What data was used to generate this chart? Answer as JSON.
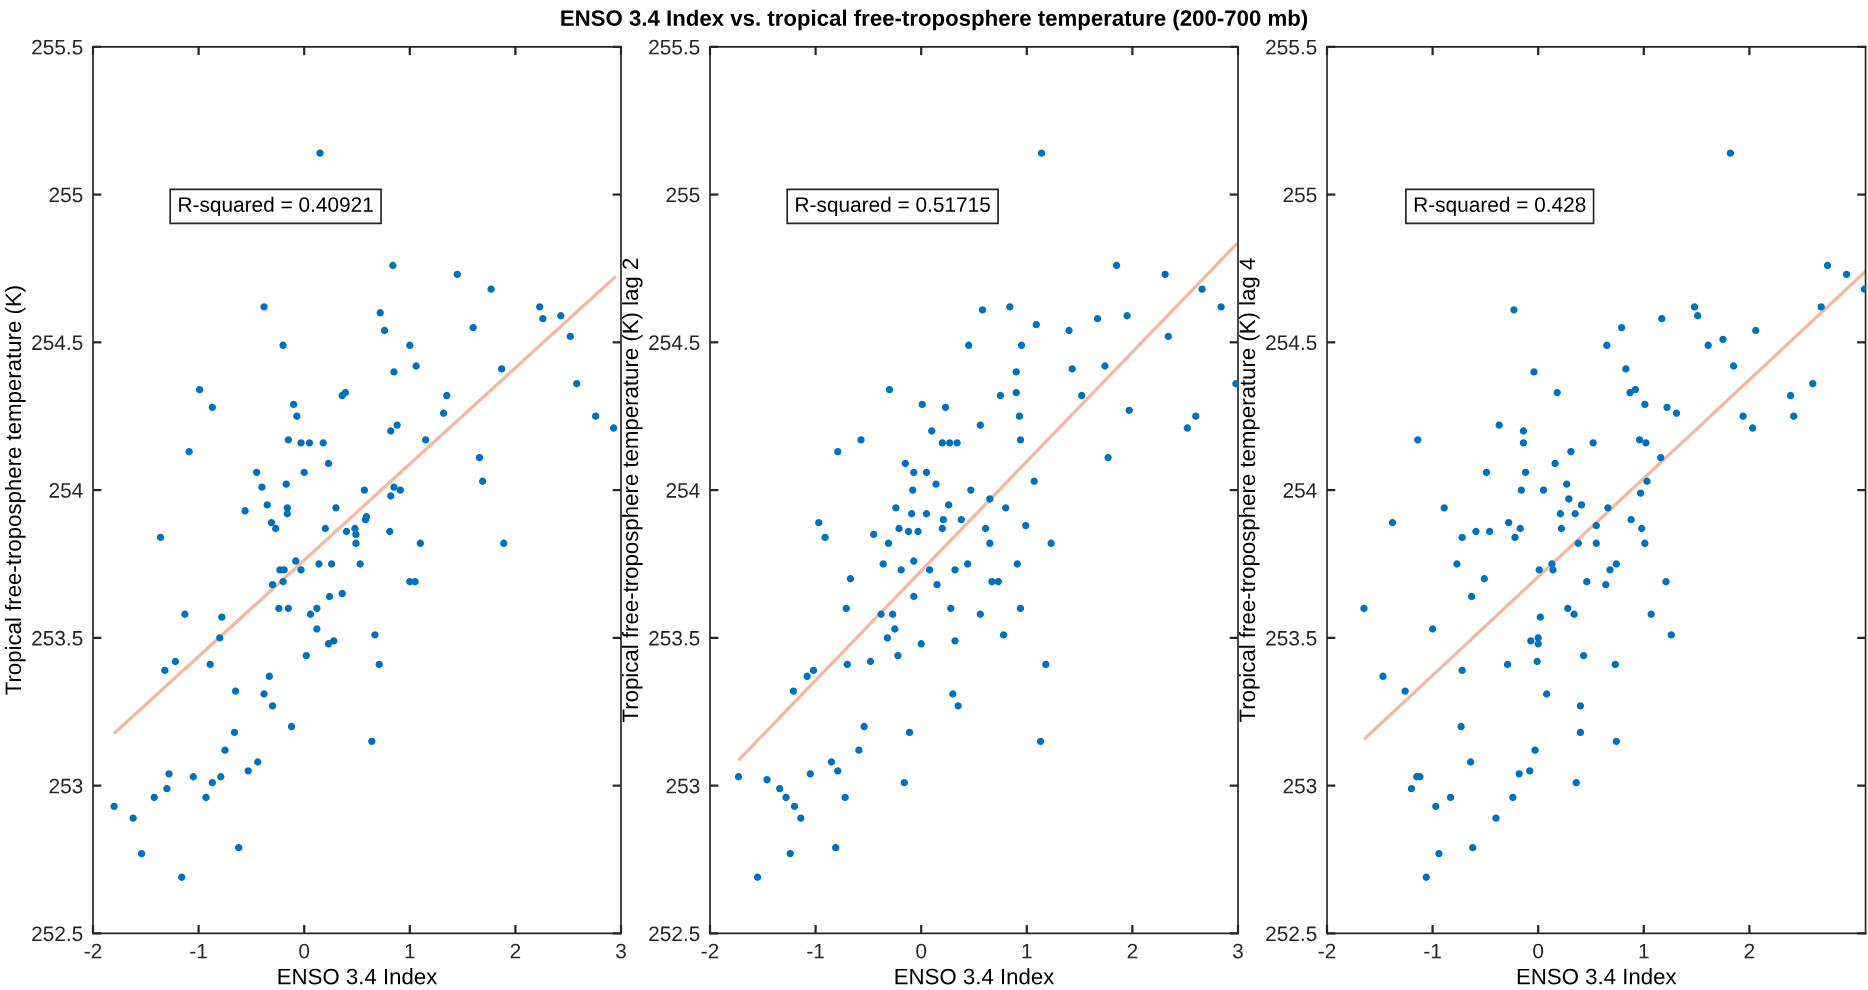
{
  "chart_data": [
    {
      "type": "scatter",
      "xlabel": "ENSO 3.4 Index",
      "ylabel": "Tropical free-troposphere temperature (K)",
      "annotations": [
        "R-squared = 0.40921"
      ],
      "xlim": [
        -2,
        3
      ],
      "xticks": [
        -2,
        -1,
        0,
        1,
        2,
        3
      ],
      "ylim": [
        252.5,
        255.5
      ],
      "yticks": [
        252.5,
        253,
        253.5,
        254,
        254.5,
        255,
        255.5
      ],
      "grid": false,
      "series": [
        {
          "color": "#0072bd",
          "marker": "circle",
          "x": [
            0.15,
            0.84,
            1.45,
            1.77,
            -0.38,
            2.23,
            2.26,
            2.43,
            0.72,
            0.76,
            1.6,
            2.52,
            -0.2,
            1.0,
            1.06,
            0.85,
            1.87,
            -0.99,
            2.58,
            -0.87,
            0.39,
            0.36,
            1.35,
            -0.1,
            -0.07,
            1.32,
            2.76,
            2.93,
            0.82,
            0.88,
            -1.09,
            -0.15,
            -0.03,
            0.05,
            0.18,
            1.15,
            0.23,
            1.66,
            -0.45,
            0.0,
            1.69,
            -0.17,
            -0.4,
            0.57,
            0.85,
            0.91,
            0.82,
            -0.56,
            -0.35,
            -0.16,
            -0.16,
            0.3,
            -0.31,
            -0.27,
            0.2,
            0.4,
            0.48,
            0.49,
            0.58,
            0.59,
            0.49,
            0.81,
            1.1,
            1.89,
            -1.36,
            -0.08,
            0.14,
            0.26,
            0.53,
            -0.23,
            -0.19,
            -0.03,
            -0.2,
            -0.3,
            1.0,
            1.05,
            0.36,
            0.24,
            -1.13,
            -0.78,
            -0.24,
            -0.15,
            0.06,
            0.12,
            0.12,
            -0.8,
            0.67,
            0.02,
            0.23,
            0.28,
            -1.22,
            -1.32,
            -0.89,
            0.71,
            -0.33,
            -0.65,
            -0.38,
            -0.3,
            -0.12,
            -0.66,
            0.64,
            -0.75,
            -0.44,
            -0.53,
            -1.28,
            -1.05,
            -0.79,
            -0.87,
            -1.3,
            -1.42,
            -0.93,
            -1.8,
            -1.62,
            -1.54,
            -0.62,
            -1.16
          ],
          "values": [
            255.14,
            254.76,
            254.73,
            254.68,
            254.62,
            254.62,
            254.58,
            254.59,
            254.6,
            254.54,
            254.55,
            254.52,
            254.49,
            254.49,
            254.42,
            254.4,
            254.41,
            254.34,
            254.36,
            254.28,
            254.33,
            254.32,
            254.32,
            254.29,
            254.25,
            254.26,
            254.25,
            254.21,
            254.2,
            254.22,
            254.13,
            254.17,
            254.16,
            254.16,
            254.16,
            254.17,
            254.09,
            254.11,
            254.06,
            254.06,
            254.03,
            254.02,
            254.01,
            254.0,
            254.01,
            254.0,
            253.98,
            253.93,
            253.95,
            253.94,
            253.92,
            253.94,
            253.89,
            253.87,
            253.87,
            253.86,
            253.87,
            253.85,
            253.9,
            253.91,
            253.82,
            253.86,
            253.82,
            253.82,
            253.84,
            253.76,
            253.75,
            253.75,
            253.75,
            253.73,
            253.73,
            253.73,
            253.69,
            253.68,
            253.69,
            253.69,
            253.65,
            253.64,
            253.58,
            253.57,
            253.6,
            253.6,
            253.58,
            253.6,
            253.53,
            253.5,
            253.51,
            253.44,
            253.48,
            253.49,
            253.42,
            253.39,
            253.41,
            253.41,
            253.37,
            253.32,
            253.31,
            253.27,
            253.2,
            253.18,
            253.15,
            253.12,
            253.08,
            253.05,
            253.04,
            253.03,
            253.03,
            253.01,
            252.99,
            252.96,
            252.96,
            252.93,
            252.89,
            252.77,
            252.79,
            252.69
          ]
        },
        {
          "type": "line",
          "color": "#f4b9a0",
          "marker": "none",
          "line_style": "solid",
          "x": [
            -1.79,
            2.94
          ],
          "values": [
            253.18,
            254.72
          ]
        }
      ]
    },
    {
      "type": "scatter",
      "title": "ENSO 3.4 Index vs. tropical free-troposphere temperature (200-700 mb)",
      "xlabel": "ENSO 3.4 Index",
      "ylabel": "Tropical free-troposphere temperature (K) lag 2",
      "annotations": [
        "R-squared = 0.51715"
      ],
      "xlim": [
        -2,
        3
      ],
      "xticks": [
        -2,
        -1,
        0,
        1,
        2,
        3
      ],
      "ylim": [
        252.5,
        255.5
      ],
      "yticks": [
        252.5,
        253,
        253.5,
        254,
        254.5,
        255,
        255.5
      ],
      "grid": false,
      "series": [
        {
          "color": "#0072bd",
          "marker": "circle",
          "x": [
            1.14,
            1.85,
            2.31,
            2.66,
            2.84,
            0.58,
            0.84,
            1.67,
            1.95,
            1.09,
            1.4,
            0.45,
            0.95,
            2.34,
            0.9,
            1.43,
            1.74,
            -0.3,
            0.75,
            0.9,
            1.52,
            2.98,
            0.01,
            0.23,
            0.93,
            1.97,
            2.6,
            2.52,
            0.56,
            0.1,
            -0.57,
            0.2,
            0.27,
            0.34,
            0.94,
            -0.79,
            1.77,
            -0.15,
            -0.07,
            0.05,
            0.14,
            1.07,
            -0.08,
            0.47,
            0.65,
            -0.24,
            0.26,
            -0.09,
            0.05,
            0.8,
            -0.97,
            0.21,
            0.38,
            0.2,
            -0.21,
            -0.12,
            -0.03,
            0.61,
            0.99,
            -0.91,
            -0.45,
            -0.31,
            0.65,
            1.23,
            -0.36,
            -0.07,
            0.91,
            0.44,
            -0.19,
            0.08,
            0.32,
            -0.67,
            0.15,
            0.67,
            0.73,
            -0.07,
            -0.71,
            0.28,
            0.94,
            -0.38,
            -0.27,
            0.56,
            -0.25,
            -0.32,
            0.32,
            0.0,
            0.78,
            -0.22,
            -0.48,
            -0.7,
            1.18,
            -1.02,
            -1.08,
            -1.21,
            0.3,
            0.35,
            -0.54,
            -0.11,
            1.13,
            -0.59,
            -0.85,
            -0.79,
            -1.05,
            -1.73,
            -1.46,
            -0.16,
            -1.34,
            -1.28,
            -0.72,
            -1.2,
            -1.14,
            -1.24,
            -0.81,
            -1.55
          ],
          "values": [
            255.14,
            254.76,
            254.73,
            254.68,
            254.62,
            254.61,
            254.62,
            254.58,
            254.59,
            254.56,
            254.54,
            254.49,
            254.49,
            254.52,
            254.4,
            254.41,
            254.42,
            254.34,
            254.32,
            254.33,
            254.32,
            254.36,
            254.29,
            254.28,
            254.25,
            254.27,
            254.25,
            254.21,
            254.22,
            254.2,
            254.17,
            254.16,
            254.16,
            254.16,
            254.17,
            254.13,
            254.11,
            254.09,
            254.06,
            254.06,
            254.02,
            254.03,
            254.0,
            254.0,
            253.97,
            253.94,
            253.95,
            253.92,
            253.92,
            253.94,
            253.89,
            253.9,
            253.9,
            253.87,
            253.87,
            253.86,
            253.86,
            253.87,
            253.88,
            253.84,
            253.85,
            253.82,
            253.82,
            253.82,
            253.75,
            253.76,
            253.75,
            253.75,
            253.73,
            253.73,
            253.73,
            253.7,
            253.68,
            253.69,
            253.69,
            253.64,
            253.6,
            253.6,
            253.6,
            253.58,
            253.58,
            253.58,
            253.53,
            253.5,
            253.49,
            253.48,
            253.51,
            253.44,
            253.42,
            253.41,
            253.41,
            253.39,
            253.37,
            253.32,
            253.31,
            253.27,
            253.2,
            253.18,
            253.15,
            253.12,
            253.08,
            253.05,
            253.04,
            253.03,
            253.02,
            253.01,
            252.99,
            252.96,
            252.96,
            252.93,
            252.89,
            252.77,
            252.79,
            252.69
          ]
        },
        {
          "type": "line",
          "color": "#f4b9a0",
          "marker": "none",
          "line_style": "solid",
          "x": [
            -1.72,
            2.98
          ],
          "values": [
            253.09,
            254.83
          ]
        }
      ]
    },
    {
      "type": "scatter",
      "xlabel": "ENSO 3.4 Index",
      "ylabel": "Tropical free-troposphere temperature (K) lag 4",
      "annotations": [
        "R-squared = 0.428"
      ],
      "xlim": [
        -2,
        3.1
      ],
      "xticks": [
        -2,
        -1,
        0,
        1,
        2
      ],
      "ylim": [
        252.5,
        255.5
      ],
      "yticks": [
        252.5,
        253,
        253.5,
        254,
        254.5,
        255,
        255.5
      ],
      "grid": false,
      "series": [
        {
          "color": "#0072bd",
          "marker": "circle",
          "x": [
            1.82,
            2.74,
            2.92,
            3.09,
            2.68,
            -0.23,
            1.17,
            1.48,
            1.51,
            0.79,
            1.75,
            2.06,
            1.61,
            0.65,
            1.85,
            -0.04,
            0.83,
            0.18,
            0.87,
            0.92,
            1.01,
            1.22,
            1.31,
            1.94,
            2.03,
            2.39,
            2.42,
            2.6,
            -0.37,
            -0.14,
            -0.14,
            -1.14,
            0.96,
            1.02,
            0.52,
            0.31,
            1.16,
            0.16,
            -0.49,
            -0.12,
            1.03,
            0.27,
            -0.16,
            0.05,
            0.97,
            0.29,
            -0.89,
            0.41,
            0.21,
            0.35,
            0.66,
            0.88,
            -0.28,
            -1.38,
            -0.17,
            0.22,
            0.55,
            0.98,
            -0.59,
            -0.46,
            -0.72,
            -0.22,
            0.38,
            0.55,
            1.01,
            -0.77,
            0.13,
            0.74,
            0.01,
            0.14,
            0.68,
            -0.51,
            0.46,
            0.64,
            1.21,
            -0.63,
            -1.65,
            0.28,
            0.34,
            0.02,
            1.07,
            -1.0,
            1.26,
            -0.07,
            0.0,
            0.0,
            0.43,
            -0.01,
            -0.29,
            0.73,
            -0.72,
            -1.47,
            -1.26,
            0.08,
            0.4,
            -0.73,
            0.4,
            0.74,
            -0.03,
            -0.64,
            -0.08,
            -0.18,
            -1.15,
            -1.12,
            0.36,
            -1.2,
            -0.83,
            -0.24,
            -0.97,
            -0.4,
            -0.94,
            -0.62,
            -1.06
          ],
          "values": [
            255.14,
            254.76,
            254.73,
            254.68,
            254.62,
            254.61,
            254.58,
            254.62,
            254.59,
            254.55,
            254.51,
            254.54,
            254.49,
            254.49,
            254.42,
            254.4,
            254.41,
            254.33,
            254.33,
            254.34,
            254.29,
            254.28,
            254.26,
            254.25,
            254.21,
            254.32,
            254.25,
            254.36,
            254.22,
            254.2,
            254.16,
            254.17,
            254.17,
            254.16,
            254.16,
            254.13,
            254.11,
            254.09,
            254.06,
            254.06,
            254.03,
            254.02,
            254.0,
            254.0,
            253.99,
            253.97,
            253.94,
            253.95,
            253.92,
            253.92,
            253.94,
            253.9,
            253.89,
            253.89,
            253.87,
            253.87,
            253.88,
            253.87,
            253.86,
            253.86,
            253.84,
            253.84,
            253.82,
            253.82,
            253.82,
            253.75,
            253.75,
            253.75,
            253.73,
            253.73,
            253.73,
            253.7,
            253.69,
            253.68,
            253.69,
            253.64,
            253.6,
            253.6,
            253.58,
            253.57,
            253.58,
            253.53,
            253.51,
            253.49,
            253.5,
            253.48,
            253.44,
            253.42,
            253.41,
            253.41,
            253.39,
            253.37,
            253.32,
            253.31,
            253.27,
            253.2,
            253.18,
            253.15,
            253.12,
            253.08,
            253.05,
            253.04,
            253.03,
            253.03,
            253.01,
            252.99,
            252.96,
            252.96,
            252.93,
            252.89,
            252.77,
            252.79,
            252.69
          ]
        },
        {
          "type": "line",
          "color": "#f4b9a0",
          "marker": "none",
          "line_style": "solid",
          "x": [
            -1.64,
            3.1
          ],
          "values": [
            253.16,
            254.74
          ]
        }
      ]
    }
  ]
}
